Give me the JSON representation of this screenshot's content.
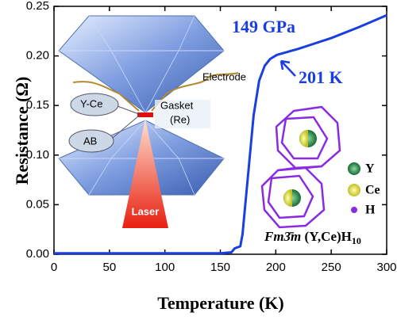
{
  "chart_data": {
    "type": "line",
    "x_label": "Temperature (K)",
    "y_label": "Resistance (Ω)",
    "x": [
      0,
      50,
      100,
      150,
      160,
      163,
      168,
      170,
      175,
      180,
      185,
      190,
      195,
      201,
      220,
      250,
      275,
      300
    ],
    "values": [
      0.001,
      0.001,
      0.001,
      0.001,
      0.002,
      0.006,
      0.008,
      0.02,
      0.08,
      0.14,
      0.175,
      0.19,
      0.197,
      0.201,
      0.207,
      0.218,
      0.229,
      0.241
    ],
    "color": "#1a3fe0",
    "xlim": [
      0,
      300
    ],
    "xticks": [
      0,
      50,
      100,
      150,
      200,
      250,
      300
    ],
    "ylim": [
      0,
      0.25
    ],
    "yticks": [
      {
        "value": 0,
        "label": "0.00"
      },
      {
        "value": 0.05,
        "label": "0.05"
      },
      {
        "value": 0.1,
        "label": "0.10"
      },
      {
        "value": 0.15,
        "label": "0.15"
      },
      {
        "value": 0.2,
        "label": "0.20"
      },
      {
        "value": 0.25,
        "label": "0.25"
      }
    ],
    "annotations": [
      "149 GPa",
      "201 K"
    ],
    "inset_labels": [
      "Electrode",
      "Y-Ce",
      "Gasket",
      "(Re)",
      "AB",
      "Laser"
    ],
    "structure_legend": [
      "Y",
      "Ce",
      "H"
    ],
    "formula": {
      "space_group": "Fm3̄m",
      "compound": "(Y,Ce)H",
      "subscript": "10"
    }
  }
}
